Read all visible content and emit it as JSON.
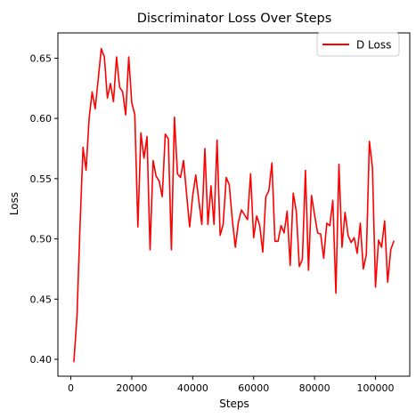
{
  "chart_data": {
    "type": "line",
    "title": "Discriminator Loss Over Steps",
    "xlabel": "Steps",
    "ylabel": "Loss",
    "xlim": [
      -4250,
      111250
    ],
    "ylim": [
      0.386,
      0.671
    ],
    "xticks": [
      0,
      20000,
      40000,
      60000,
      80000,
      100000
    ],
    "xtick_labels": [
      "0",
      "20000",
      "40000",
      "60000",
      "80000",
      "100000"
    ],
    "yticks": [
      0.4,
      0.45,
      0.5,
      0.55,
      0.6,
      0.65
    ],
    "ytick_labels": [
      "0.40",
      "0.45",
      "0.50",
      "0.55",
      "0.60",
      "0.65"
    ],
    "grid": false,
    "legend_position": "top-right",
    "series": [
      {
        "name": "D Loss",
        "color": "#ff0000",
        "x": [
          1000,
          2000,
          3000,
          4000,
          5000,
          6000,
          7000,
          8000,
          9000,
          10000,
          11000,
          12000,
          13000,
          14000,
          15000,
          16000,
          17000,
          18000,
          19000,
          20000,
          21000,
          22000,
          23000,
          24000,
          25000,
          26000,
          27000,
          28000,
          29000,
          30000,
          31000,
          32000,
          33000,
          34000,
          35000,
          36000,
          37000,
          38000,
          39000,
          40000,
          41000,
          42000,
          43000,
          44000,
          45000,
          46000,
          47000,
          48000,
          49000,
          50000,
          51000,
          52000,
          53000,
          54000,
          55000,
          56000,
          57000,
          58000,
          59000,
          60000,
          61000,
          62000,
          63000,
          64000,
          65000,
          66000,
          67000,
          68000,
          69000,
          70000,
          71000,
          72000,
          73000,
          74000,
          75000,
          76000,
          77000,
          78000,
          79000,
          80000,
          81000,
          82000,
          83000,
          84000,
          85000,
          86000,
          87000,
          88000,
          89000,
          90000,
          91000,
          92000,
          93000,
          94000,
          95000,
          96000,
          97000,
          98000,
          99000,
          100000,
          101000,
          102000,
          103000,
          104000,
          105000,
          106000
        ],
        "values": [
          0.398,
          0.435,
          0.51,
          0.576,
          0.557,
          0.6,
          0.622,
          0.608,
          0.633,
          0.658,
          0.651,
          0.617,
          0.629,
          0.614,
          0.651,
          0.626,
          0.622,
          0.603,
          0.651,
          0.613,
          0.603,
          0.51,
          0.588,
          0.567,
          0.585,
          0.491,
          0.565,
          0.552,
          0.548,
          0.535,
          0.587,
          0.583,
          0.491,
          0.601,
          0.554,
          0.551,
          0.565,
          0.537,
          0.51,
          0.536,
          0.553,
          0.532,
          0.512,
          0.575,
          0.512,
          0.544,
          0.512,
          0.582,
          0.503,
          0.512,
          0.551,
          0.545,
          0.516,
          0.493,
          0.514,
          0.524,
          0.52,
          0.516,
          0.554,
          0.501,
          0.519,
          0.511,
          0.489,
          0.535,
          0.54,
          0.563,
          0.498,
          0.498,
          0.511,
          0.505,
          0.523,
          0.478,
          0.538,
          0.523,
          0.477,
          0.483,
          0.557,
          0.474,
          0.536,
          0.52,
          0.505,
          0.504,
          0.484,
          0.513,
          0.511,
          0.532,
          0.455,
          0.562,
          0.493,
          0.522,
          0.503,
          0.497,
          0.501,
          0.488,
          0.513,
          0.475,
          0.487,
          0.581,
          0.559,
          0.46,
          0.499,
          0.493,
          0.515,
          0.464,
          0.491,
          0.498
        ]
      }
    ]
  }
}
